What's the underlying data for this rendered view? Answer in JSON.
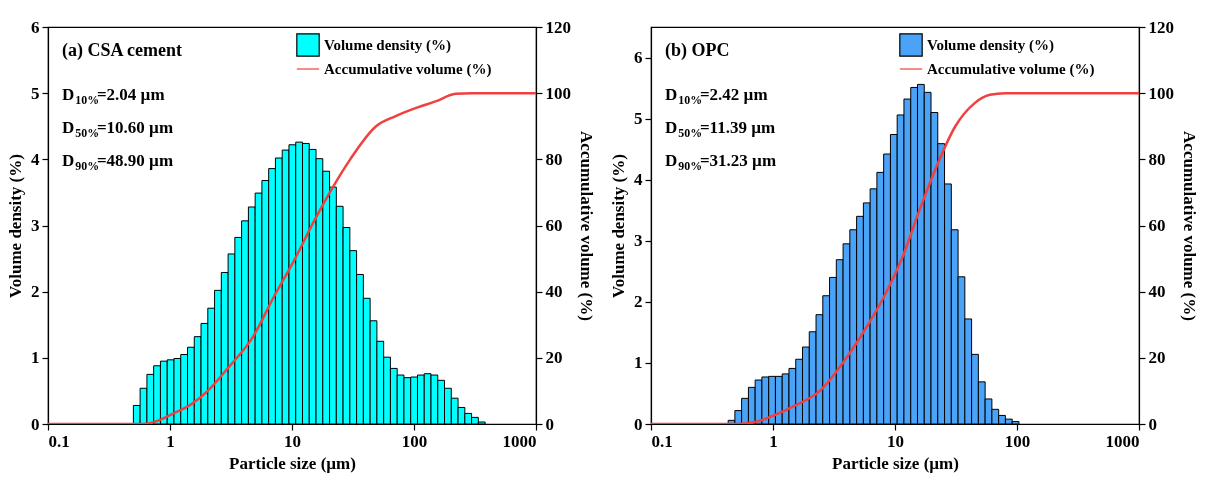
{
  "chart_data": [
    {
      "type": "histogram",
      "title": "(a) CSA cement",
      "xlabel": "Particle size (µm)",
      "ylabel": "Volume density (%)",
      "y2label": "Accumulative volume (%)",
      "annotations": [
        "D$_{10%}$=2.04 µm",
        "D$_{50%}$=10.60 µm",
        "D$_{90%}$=48.90 µm"
      ],
      "bins": [
        0.501,
        0.569,
        0.647,
        0.735,
        0.835,
        0.949,
        1.078,
        1.225,
        1.392,
        1.581,
        1.796,
        2.041,
        2.319,
        2.634,
        2.994,
        3.401,
        3.864,
        4.391,
        4.988,
        5.668,
        6.439,
        7.315,
        8.313,
        9.443,
        10.73,
        12.19,
        13.85,
        15.74,
        17.88,
        20.32,
        23.08,
        26.22,
        29.8,
        33.85,
        38.46,
        43.7,
        49.64,
        56.41,
        64.09,
        72.82,
        82.72,
        93.98,
        106.8,
        121.3,
        137.8,
        156.6,
        177.9,
        202.2,
        229.7,
        261.0,
        296.5,
        336.9,
        382.8
      ],
      "series": [
        {
          "name": "Volume density (%)",
          "color": "#00ffff",
          "values": [
            0.28,
            0.54,
            0.75,
            0.88,
            0.95,
            0.97,
            0.99,
            1.05,
            1.16,
            1.32,
            1.52,
            1.75,
            2.02,
            2.29,
            2.57,
            2.82,
            3.07,
            3.28,
            3.49,
            3.68,
            3.86,
            4.02,
            4.14,
            4.22,
            4.26,
            4.24,
            4.15,
            4.01,
            3.82,
            3.58,
            3.29,
            2.97,
            2.62,
            2.26,
            1.9,
            1.56,
            1.25,
            1.01,
            0.84,
            0.74,
            0.7,
            0.71,
            0.74,
            0.76,
            0.74,
            0.66,
            0.54,
            0.39,
            0.25,
            0.16,
            0.1,
            0.03
          ]
        },
        {
          "name": "Accumulative volume (%)",
          "type": "line",
          "axis": "y2",
          "color": "#f04040",
          "x": [
            0.1,
            0.6,
            0.8,
            1,
            1.5,
            2.04,
            3,
            4.8,
            7,
            10.6,
            15,
            21.7,
            30,
            48.9,
            70,
            107,
            150,
            220,
            300,
            1000
          ],
          "values": [
            0,
            0,
            1,
            2.7,
            6,
            10,
            17,
            26.4,
            38,
            50,
            61,
            71.7,
            80,
            90,
            93,
            95.7,
            97.5,
            99.8,
            100,
            100
          ]
        }
      ],
      "log": "x",
      "xlim": [
        0.1,
        1000
      ],
      "xticks": [
        0.1,
        1,
        10,
        100,
        1000
      ],
      "ylim": [
        0,
        6
      ],
      "yticks": [
        0,
        1,
        2,
        3,
        4,
        5,
        6
      ],
      "y2lim": [
        0,
        120
      ],
      "y2ticks": [
        0,
        20,
        40,
        60,
        80,
        100,
        120
      ],
      "legend": "top right",
      "grid": false
    },
    {
      "type": "histogram",
      "title": "(b) OPC",
      "xlabel": "Particle size (µm)",
      "ylabel": "Volume density (%)",
      "y2label": "Accumulative volume (%)",
      "annotations": [
        "D$_{10%}$=2.42 µm",
        "D$_{50%}$=11.39 µm",
        "D$_{90%}$=31.23 µm"
      ],
      "bins": [
        0.429,
        0.487,
        0.553,
        0.629,
        0.714,
        0.811,
        0.922,
        1.047,
        1.19,
        1.352,
        1.536,
        1.745,
        1.983,
        2.253,
        2.559,
        2.908,
        3.304,
        3.754,
        4.265,
        4.846,
        5.506,
        6.255,
        7.107,
        8.075,
        9.175,
        10.42,
        11.84,
        13.46,
        15.29,
        17.37,
        19.73,
        22.42,
        25.47,
        28.94,
        32.89,
        37.36,
        42.45,
        48.23,
        54.8,
        62.26,
        70.74,
        80.35,
        91.31,
        103.7
      ],
      "series": [
        {
          "name": "Volume density (%)",
          "color": "#4ba3f7",
          "values": [
            0.06,
            0.22,
            0.42,
            0.6,
            0.72,
            0.77,
            0.78,
            0.78,
            0.82,
            0.91,
            1.06,
            1.26,
            1.51,
            1.79,
            2.1,
            2.4,
            2.69,
            2.95,
            3.18,
            3.4,
            3.62,
            3.85,
            4.12,
            4.42,
            4.74,
            5.06,
            5.32,
            5.51,
            5.56,
            5.43,
            5.1,
            4.59,
            3.93,
            3.18,
            2.41,
            1.72,
            1.14,
            0.69,
            0.41,
            0.24,
            0.14,
            0.08,
            0.04
          ]
        },
        {
          "name": "Accumulative volume (%)",
          "type": "line",
          "axis": "y2",
          "color": "#f04040",
          "x": [
            0.1,
            0.5,
            0.7,
            1,
            1.5,
            2.42,
            4,
            6,
            8,
            11.39,
            16,
            22,
            31.23,
            45,
            60,
            80,
            1000
          ],
          "values": [
            0,
            0,
            0.5,
            2.5,
            5.5,
            10,
            20,
            30,
            38,
            50,
            65,
            78,
            90,
            97,
            99.5,
            100,
            100
          ]
        }
      ],
      "log": "x",
      "xlim": [
        0.1,
        1000
      ],
      "xticks": [
        0.1,
        1,
        10,
        100,
        1000
      ],
      "ylim": [
        0,
        6.5
      ],
      "yticks": [
        0,
        1,
        2,
        3,
        4,
        5,
        6
      ],
      "y2lim": [
        0,
        120
      ],
      "y2ticks": [
        0,
        20,
        40,
        60,
        80,
        100,
        120
      ],
      "legend": "top right",
      "grid": false
    }
  ]
}
